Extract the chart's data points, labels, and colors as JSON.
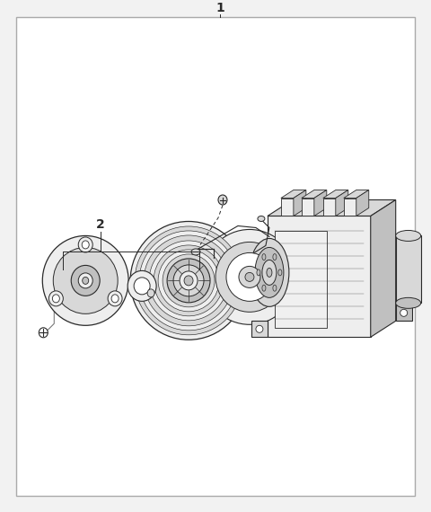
{
  "bg_color": "#f2f2f2",
  "border_color": "#aaaaaa",
  "line_color": "#2a2a2a",
  "fill_light": "#eeeeee",
  "fill_mid": "#d8d8d8",
  "fill_dark": "#c0c0c0",
  "fill_white": "#ffffff",
  "label1": "1",
  "label2": "2",
  "figsize": [
    4.8,
    5.7
  ],
  "dpi": 100
}
